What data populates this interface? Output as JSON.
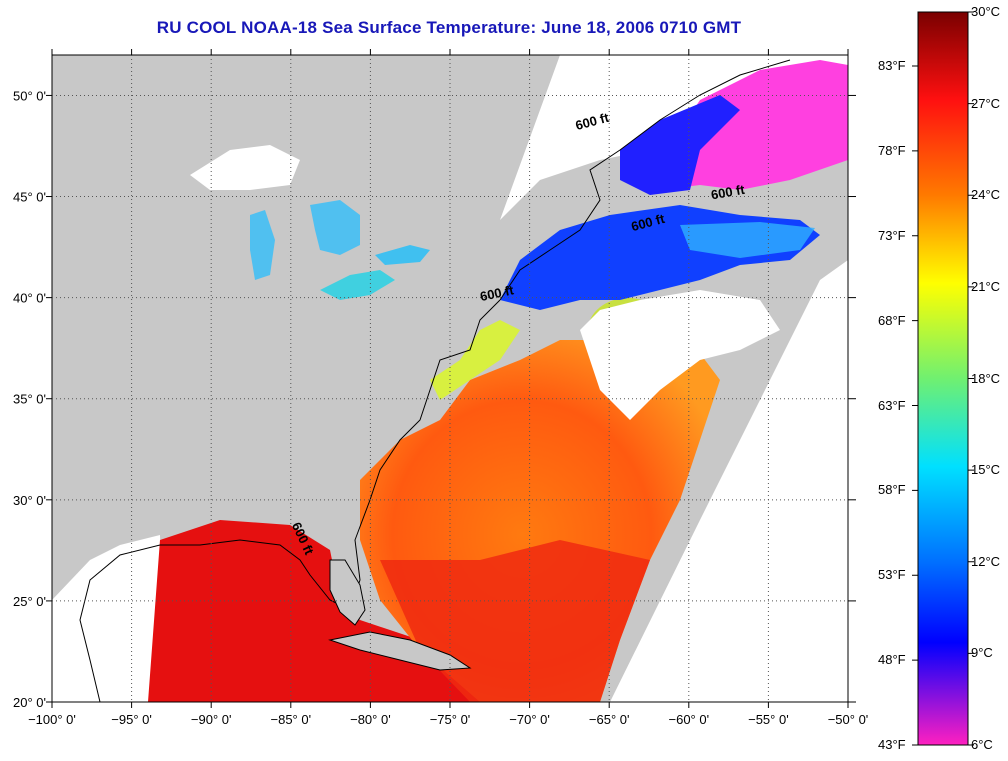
{
  "title": "RU COOL  NOAA-18  Sea Surface Temperature:  June 18, 2006 0710 GMT",
  "map": {
    "lon_range": [
      -100,
      -50
    ],
    "lat_range": [
      20,
      52
    ],
    "lon_ticks": [
      {
        "value": -100,
        "label": "−100° 0'"
      },
      {
        "value": -95,
        "label": "−95° 0'"
      },
      {
        "value": -90,
        "label": "−90° 0'"
      },
      {
        "value": -85,
        "label": "−85° 0'"
      },
      {
        "value": -80,
        "label": "−80° 0'"
      },
      {
        "value": -75,
        "label": "−75° 0'"
      },
      {
        "value": -70,
        "label": "−70° 0'"
      },
      {
        "value": -65,
        "label": "−65° 0'"
      },
      {
        "value": -60,
        "label": "−60° 0'"
      },
      {
        "value": -55,
        "label": "−55° 0'"
      },
      {
        "value": -50,
        "label": "−50° 0'"
      }
    ],
    "lat_ticks": [
      {
        "value": 20,
        "label": "20° 0'"
      },
      {
        "value": 25,
        "label": "25° 0'"
      },
      {
        "value": 30,
        "label": "30° 0'"
      },
      {
        "value": 35,
        "label": "35° 0'"
      },
      {
        "value": 40,
        "label": "40° 0'"
      },
      {
        "value": 45,
        "label": "45° 0'"
      },
      {
        "value": 50,
        "label": "50° 0'"
      }
    ],
    "contour_labels": [
      {
        "text": "600 ft",
        "lon": -66.0,
        "lat": 48.5,
        "rotate": -15
      },
      {
        "text": "600 ft",
        "lon": -57.5,
        "lat": 45.0,
        "rotate": -10
      },
      {
        "text": "600 ft",
        "lon": -62.5,
        "lat": 43.5,
        "rotate": -15
      },
      {
        "text": "600 ft",
        "lon": -72.0,
        "lat": 40.0,
        "rotate": -12
      },
      {
        "text": "600 ft",
        "lon": -84.5,
        "lat": 28.0,
        "rotate": 65
      }
    ],
    "colors": {
      "land": "#c8c8c8",
      "nodata": "#ffffff",
      "coast": "#000000"
    }
  },
  "colorbar": {
    "celsius": [
      "30°C",
      "27°C",
      "24°C",
      "21°C",
      "18°C",
      "15°C",
      "12°C",
      "9°C",
      "6°C"
    ],
    "fahrenheit": [
      "83°F",
      "78°F",
      "73°F",
      "68°F",
      "63°F",
      "58°F",
      "53°F",
      "48°F",
      "43°F"
    ],
    "stops": [
      "#8b0000",
      "#ff0000",
      "#ff7f00",
      "#ffff00",
      "#7fff7f",
      "#00ffff",
      "#007fff",
      "#0000ff",
      "#ff00ff"
    ]
  }
}
